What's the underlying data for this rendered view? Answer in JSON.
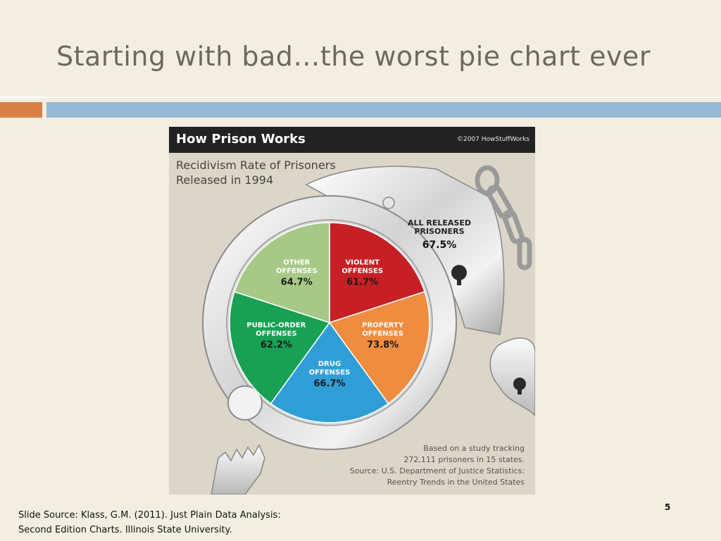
{
  "slide": {
    "title": "Starting with bad…the worst pie chart ever",
    "source_line1": "Slide Source: Klass, G.M. (2011). Just Plain Data Analysis:",
    "source_line2": "Second Edition Charts. Illinois State University.",
    "page_number": "5"
  },
  "infographic": {
    "header_title": "How Prison Works",
    "copyright": "©2007 HowStuffWorks",
    "subtitle_line1": "Recidivism Rate of Prisoners",
    "subtitle_line2": "Released in 1994",
    "overall_label_line1": "ALL RELEASED",
    "overall_label_line2": "PRISONERS",
    "overall_value": "67.5%",
    "footnote_line1": "Based on a study tracking",
    "footnote_line2": "272,111 prisoners in 15 states.",
    "footnote_line3": "Source: U.S. Department of Justice Statistics:",
    "footnote_line4": "Reentry Trends in the United States"
  },
  "chart_data": {
    "type": "pie",
    "title": "Recidivism Rate of Prisoners Released in 1994",
    "slices": [
      {
        "label": "VIOLENT OFFENSES",
        "value": 61.7,
        "display": "61.7%",
        "color": "#c62026",
        "text_color": "#ffffff",
        "value_color": "#1a1a1a"
      },
      {
        "label": "PROPERTY OFFENSES",
        "value": 73.8,
        "display": "73.8%",
        "color": "#ef8c3f",
        "text_color": "#ffffff",
        "value_color": "#1a1a1a"
      },
      {
        "label": "DRUG OFFENSES",
        "value": 66.7,
        "display": "66.7%",
        "color": "#2f9ed7",
        "text_color": "#ffffff",
        "value_color": "#1a1a1a"
      },
      {
        "label": "PUBLIC-ORDER OFFENSES",
        "value": 62.2,
        "display": "62.2%",
        "color": "#18a055",
        "text_color": "#ffffff",
        "value_color": "#1a1a1a"
      },
      {
        "label": "OTHER OFFENSES",
        "value": 64.7,
        "display": "64.7%",
        "color": "#a7c988",
        "text_color": "#ffffff",
        "value_color": "#1a1a1a"
      }
    ],
    "overall": {
      "label": "ALL RELEASED PRISONERS",
      "value": 67.5
    }
  }
}
